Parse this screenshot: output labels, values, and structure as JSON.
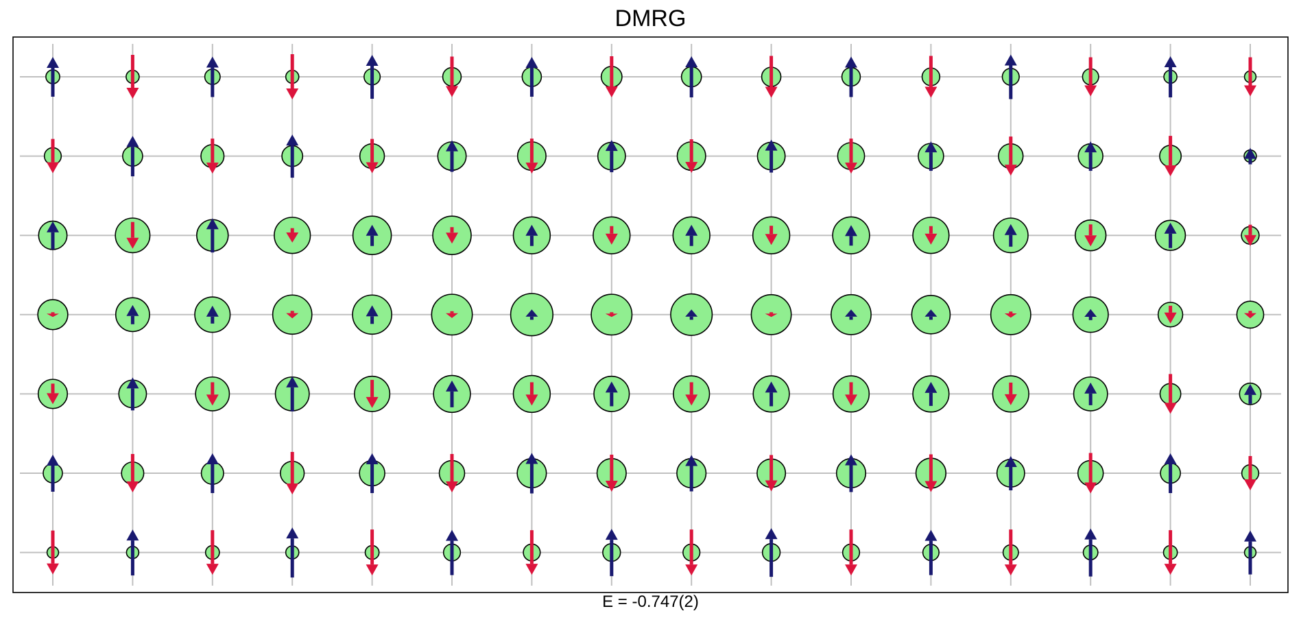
{
  "chart_data": {
    "type": "lattice-spin-map",
    "title": "DMRG",
    "xlabel": "E = -0.747(2)",
    "ylabel": "",
    "grid": true,
    "colors": {
      "spin_up": "#191970",
      "spin_down": "#dc143c",
      "site_fill": "#90ee90",
      "site_edge": "#000000",
      "grid_line": "#c0c0c0"
    },
    "columns": 16,
    "rows": 7,
    "density": [
      [
        0.18,
        0.17,
        0.2,
        0.17,
        0.21,
        0.24,
        0.25,
        0.27,
        0.26,
        0.25,
        0.24,
        0.23,
        0.22,
        0.21,
        0.17,
        0.15
      ],
      [
        0.22,
        0.26,
        0.3,
        0.27,
        0.32,
        0.37,
        0.37,
        0.36,
        0.37,
        0.36,
        0.35,
        0.33,
        0.32,
        0.32,
        0.28,
        0.16
      ],
      [
        0.37,
        0.45,
        0.41,
        0.47,
        0.5,
        0.5,
        0.48,
        0.48,
        0.48,
        0.48,
        0.48,
        0.47,
        0.45,
        0.4,
        0.39,
        0.23
      ],
      [
        0.39,
        0.44,
        0.46,
        0.51,
        0.51,
        0.53,
        0.55,
        0.53,
        0.54,
        0.52,
        0.52,
        0.5,
        0.52,
        0.46,
        0.32,
        0.35
      ],
      [
        0.38,
        0.36,
        0.44,
        0.44,
        0.46,
        0.48,
        0.48,
        0.46,
        0.47,
        0.47,
        0.47,
        0.47,
        0.47,
        0.44,
        0.27,
        0.28
      ],
      [
        0.25,
        0.29,
        0.29,
        0.31,
        0.33,
        0.33,
        0.38,
        0.38,
        0.38,
        0.37,
        0.38,
        0.39,
        0.36,
        0.33,
        0.26,
        0.22
      ],
      [
        0.15,
        0.16,
        0.18,
        0.17,
        0.18,
        0.22,
        0.22,
        0.23,
        0.22,
        0.23,
        0.22,
        0.21,
        0.2,
        0.19,
        0.18,
        0.15
      ]
    ],
    "spin": [
      [
        0.58,
        -0.64,
        0.59,
        -0.66,
        0.64,
        -0.59,
        0.58,
        -0.6,
        0.6,
        -0.61,
        0.59,
        -0.61,
        0.65,
        -0.57,
        0.6,
        -0.57
      ],
      [
        -0.5,
        0.59,
        -0.51,
        0.63,
        -0.5,
        0.46,
        -0.51,
        0.47,
        -0.49,
        0.48,
        -0.51,
        0.43,
        -0.57,
        0.43,
        -0.59,
        0.24
      ],
      [
        0.41,
        -0.39,
        0.5,
        -0.21,
        0.31,
        -0.24,
        0.31,
        -0.27,
        0.31,
        -0.28,
        0.3,
        -0.27,
        0.33,
        -0.32,
        0.37,
        -0.31
      ],
      [
        -0.07,
        0.28,
        0.26,
        -0.11,
        0.27,
        -0.1,
        0.15,
        -0.07,
        0.15,
        -0.07,
        0.15,
        0.15,
        -0.09,
        0.16,
        -0.26,
        -0.11
      ],
      [
        -0.3,
        0.48,
        -0.34,
        0.51,
        -0.41,
        0.39,
        -0.34,
        0.36,
        -0.34,
        0.36,
        -0.34,
        0.35,
        -0.33,
        0.33,
        -0.58,
        0.29
      ],
      [
        0.54,
        -0.56,
        0.58,
        -0.62,
        0.58,
        -0.56,
        0.59,
        -0.54,
        0.53,
        -0.53,
        0.55,
        -0.55,
        0.5,
        -0.59,
        0.58,
        -0.5
      ],
      [
        -0.64,
        0.67,
        -0.65,
        0.73,
        -0.67,
        0.66,
        -0.65,
        0.69,
        -0.67,
        0.71,
        -0.67,
        0.66,
        -0.67,
        0.7,
        -0.65,
        0.64
      ]
    ]
  }
}
